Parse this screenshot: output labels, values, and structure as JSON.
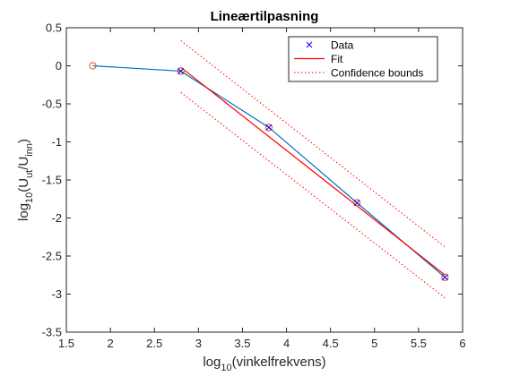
{
  "chart_data": {
    "type": "line",
    "title": "Lineærtilpasning",
    "xlabel": {
      "prefix": "log",
      "sub": "10",
      "rest": "(vinkelfrekvens)"
    },
    "ylabel": {
      "p1": "log",
      "s1": "10",
      "p2": "(U",
      "s2": "ut",
      "p3": "/U",
      "s3": "inn",
      "p4": ")"
    },
    "xlim": [
      1.5,
      6
    ],
    "ylim": [
      -3.5,
      0.5
    ],
    "xticks": [
      1.5,
      2,
      2.5,
      3,
      3.5,
      4,
      4.5,
      5,
      5.5,
      6
    ],
    "yticks": [
      -3.5,
      -3,
      -2.5,
      -2,
      -1.5,
      -1,
      -0.5,
      0,
      0.5
    ],
    "xtick_labels": [
      "1.5",
      "2",
      "2.5",
      "3",
      "3.5",
      "4",
      "4.5",
      "5",
      "5.5",
      "6"
    ],
    "ytick_labels": [
      "-3.5",
      "-3",
      "-2.5",
      "-2",
      "-1.5",
      "-1",
      "-0.5",
      "0",
      "0.5"
    ],
    "grid": false,
    "legend_position": "top-right",
    "legend": [
      {
        "label": "Data",
        "style": "marker-x"
      },
      {
        "label": "Fit",
        "style": "solid"
      },
      {
        "label": "Confidence bounds",
        "style": "dotted"
      }
    ],
    "colors": {
      "data": "#0000ff",
      "fit": "#ff0000",
      "bounds": "#ff0000",
      "line": "#0072bd",
      "circle": "#d95319"
    },
    "series": [
      {
        "name": "Data",
        "x": [
          2.8,
          3.8,
          4.8,
          5.8
        ],
        "y": [
          -0.07,
          -0.81,
          -1.8,
          -2.78
        ]
      },
      {
        "name": "Fit",
        "x": [
          2.8,
          5.8
        ],
        "y": [
          -0.02,
          -2.75
        ]
      },
      {
        "name": "Confidence bounds",
        "x": [
          2.8,
          5.8
        ],
        "y": [
          0.33,
          -2.38
        ],
        "y2": [
          -0.35,
          -3.05
        ]
      },
      {
        "x": [
          1.8,
          2.8,
          3.8,
          4.8,
          5.8
        ],
        "y": [
          0.0,
          -0.07,
          -0.81,
          -1.8,
          -2.78
        ]
      }
    ]
  }
}
